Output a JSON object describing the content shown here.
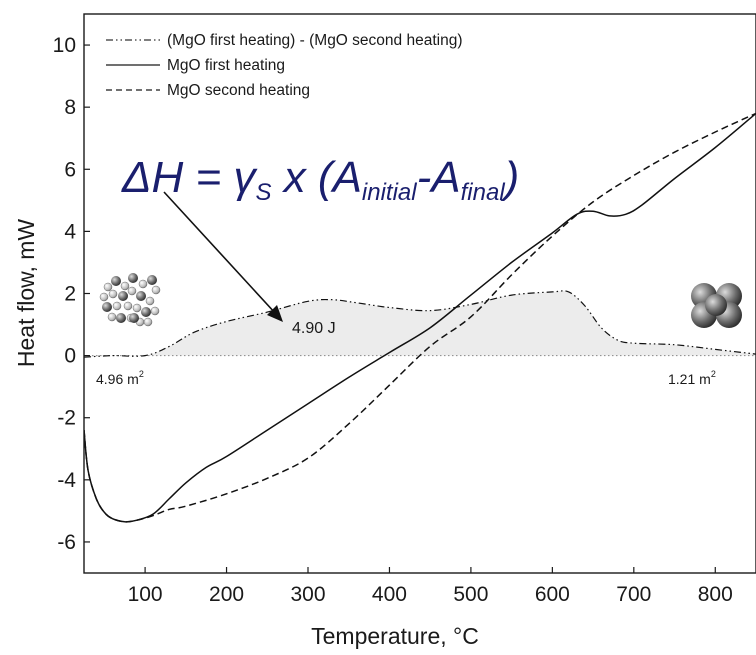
{
  "chart_data": {
    "type": "line",
    "title": "",
    "xlabel": "Temperature, °C",
    "ylabel": "Heat flow, mW",
    "xlim": [
      25,
      850
    ],
    "ylim": [
      -7,
      11
    ],
    "xticks": [
      100,
      200,
      300,
      400,
      500,
      600,
      700,
      800
    ],
    "yticks": [
      -6,
      -4,
      -2,
      0,
      2,
      4,
      6,
      8,
      10
    ],
    "grid": false,
    "legend_position": "top-left",
    "series": [
      {
        "name": "(MgO first heating) - (MgO  second heating)",
        "style": "dash-dot",
        "fill": "#ececec",
        "x": [
          25,
          60,
          100,
          130,
          160,
          200,
          250,
          300,
          330,
          360,
          400,
          450,
          500,
          550,
          600,
          620,
          640,
          660,
          680,
          700,
          750,
          800,
          850
        ],
        "y": [
          -0.05,
          0,
          0,
          0.3,
          0.75,
          1.1,
          1.4,
          1.75,
          1.8,
          1.7,
          1.55,
          1.45,
          1.65,
          1.95,
          2.05,
          2.05,
          1.6,
          0.9,
          0.5,
          0.4,
          0.35,
          0.2,
          0.05
        ]
      },
      {
        "name": "MgO first heating",
        "style": "solid",
        "x": [
          25,
          30,
          40,
          50,
          60,
          75,
          90,
          110,
          130,
          150,
          175,
          200,
          250,
          300,
          350,
          400,
          450,
          500,
          550,
          600,
          630,
          650,
          670,
          690,
          710,
          750,
          800,
          850
        ],
        "y": [
          -2.4,
          -3.7,
          -4.6,
          -5.05,
          -5.25,
          -5.35,
          -5.3,
          -5.1,
          -4.6,
          -4.1,
          -3.6,
          -3.25,
          -2.4,
          -1.55,
          -0.7,
          0.1,
          0.9,
          1.95,
          3.0,
          3.95,
          4.55,
          4.65,
          4.5,
          4.55,
          4.85,
          5.7,
          6.7,
          7.8
        ]
      },
      {
        "name": "MgO second heating",
        "style": "dashed",
        "x": [
          25,
          30,
          40,
          50,
          60,
          75,
          90,
          110,
          130,
          150,
          200,
          250,
          300,
          350,
          400,
          450,
          500,
          550,
          600,
          650,
          700,
          750,
          800,
          850
        ],
        "y": [
          -2.4,
          -3.7,
          -4.6,
          -5.05,
          -5.25,
          -5.35,
          -5.3,
          -5.15,
          -4.95,
          -4.85,
          -4.45,
          -3.95,
          -3.3,
          -2.2,
          -0.95,
          0.3,
          1.25,
          2.6,
          3.85,
          4.95,
          5.8,
          6.55,
          7.2,
          7.8
        ]
      }
    ],
    "annotations": {
      "formula": {
        "prefix": "ΔH = γ",
        "prefix_sub": "S",
        "mid": " x (A",
        "sub1": "initial",
        "dash": "-A",
        "sub2": "final",
        "suffix": ")"
      },
      "peak_area": "4.90 J",
      "left_area_value": "4.96 m",
      "left_area_exp": "2",
      "right_area_value": "1.21 m",
      "right_area_exp": "2"
    }
  }
}
